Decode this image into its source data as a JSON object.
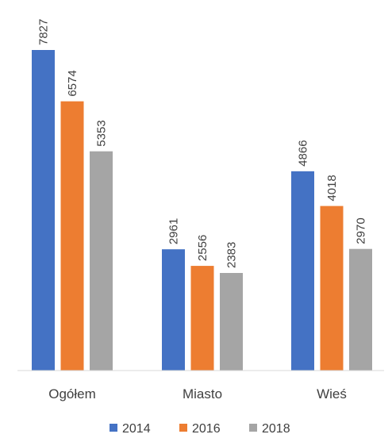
{
  "chart_data": {
    "type": "bar",
    "title": "",
    "xlabel": "",
    "ylabel": "",
    "categories": [
      "Ogółem",
      "Miasto",
      "Wieś"
    ],
    "series": [
      {
        "name": "2014",
        "color": "#4472C4",
        "values": [
          7827,
          2961,
          4866
        ]
      },
      {
        "name": "2016",
        "color": "#ED7D31",
        "values": [
          6574,
          2556,
          4018
        ]
      },
      {
        "name": "2018",
        "color": "#A5A5A5",
        "values": [
          5353,
          2383,
          2970
        ]
      }
    ],
    "ylim": [
      0,
      7827
    ],
    "grid": false,
    "legend_position": "bottom",
    "data_labels": true,
    "axis_line_color": "#D9D9D9"
  }
}
